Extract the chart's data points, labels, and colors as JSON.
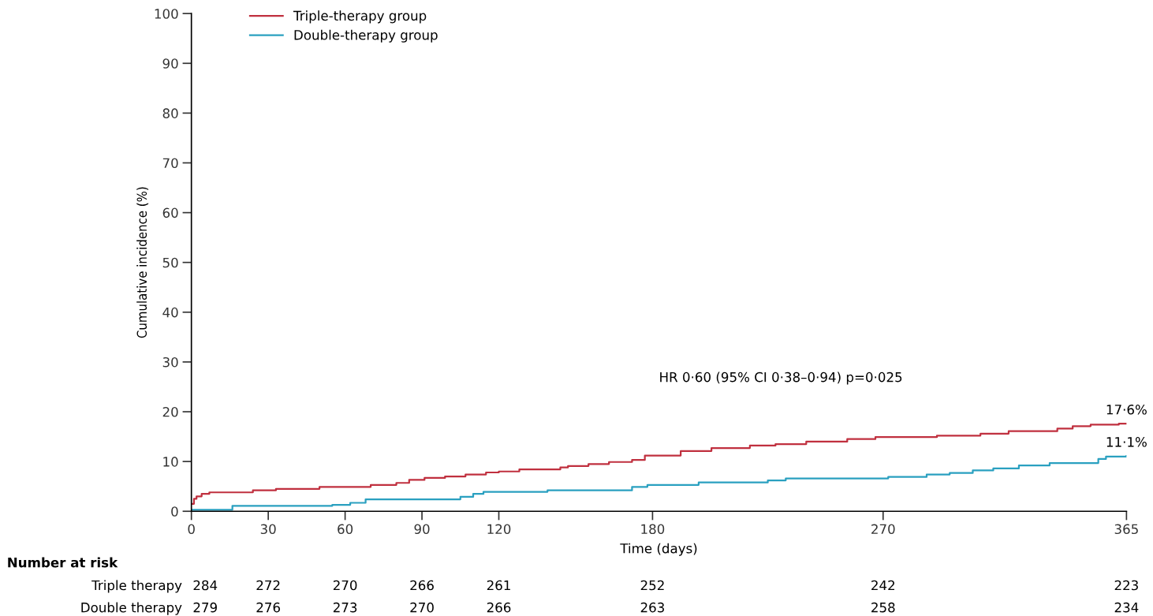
{
  "chart_data": {
    "type": "step",
    "xlabel": "Time (days)",
    "ylabel": "Cumulative incidence (%)",
    "x": [
      0,
      1,
      2,
      4,
      7,
      24,
      33,
      50,
      70,
      80,
      85,
      91,
      99,
      107,
      115,
      120,
      128,
      144,
      147,
      155,
      163,
      172,
      177,
      191,
      203,
      218,
      228,
      240,
      256,
      267,
      291,
      308,
      319,
      338,
      344,
      351,
      362,
      365
    ],
    "series": [
      {
        "name": "Triple-therapy group",
        "color": "#c0303f",
        "values": [
          1.5,
          2.5,
          3.0,
          3.5,
          3.8,
          4.2,
          4.5,
          4.9,
          5.3,
          5.7,
          6.3,
          6.7,
          7.0,
          7.4,
          7.8,
          8.0,
          8.4,
          8.8,
          9.1,
          9.5,
          9.9,
          10.3,
          11.2,
          12.1,
          12.7,
          13.2,
          13.5,
          14.0,
          14.5,
          14.9,
          15.2,
          15.6,
          16.1,
          16.6,
          17.1,
          17.4,
          17.6,
          17.6
        ]
      },
      {
        "name": "Double-therapy group",
        "color": "#2aa0c0",
        "x": [
          0,
          16,
          55,
          62,
          68,
          105,
          110,
          114,
          139,
          172,
          178,
          198,
          225,
          232,
          272,
          287,
          296,
          305,
          313,
          323,
          335,
          354,
          357,
          365
        ],
        "values": [
          0.3,
          1.1,
          1.3,
          1.7,
          2.4,
          2.9,
          3.5,
          3.9,
          4.2,
          4.9,
          5.3,
          5.8,
          6.2,
          6.6,
          6.9,
          7.4,
          7.7,
          8.2,
          8.6,
          9.2,
          9.7,
          10.5,
          11.0,
          11.1
        ]
      }
    ],
    "xlim": [
      0,
      365
    ],
    "xticks": [
      0,
      30,
      60,
      90,
      120,
      180,
      270,
      365
    ],
    "ylim": [
      0,
      100
    ],
    "yticks": [
      0,
      10,
      20,
      30,
      40,
      50,
      60,
      70,
      80,
      90,
      100
    ],
    "grid": false,
    "legend": "top left",
    "annotations": [
      "HR 0·60 (95% CI 0·38–0·94) p=0·025",
      {
        "text": "17·6%",
        "x": 365,
        "y": 17.6
      },
      {
        "text": "11·1%",
        "x": 365,
        "y": 11.1
      },
      "Number at risk",
      "Triple therapy",
      "284",
      "272",
      "270",
      "266",
      "261",
      "252",
      "242",
      "223",
      "Double therapy",
      "279",
      "276",
      "273",
      "270",
      "266",
      "263",
      "258",
      "234"
    ]
  }
}
